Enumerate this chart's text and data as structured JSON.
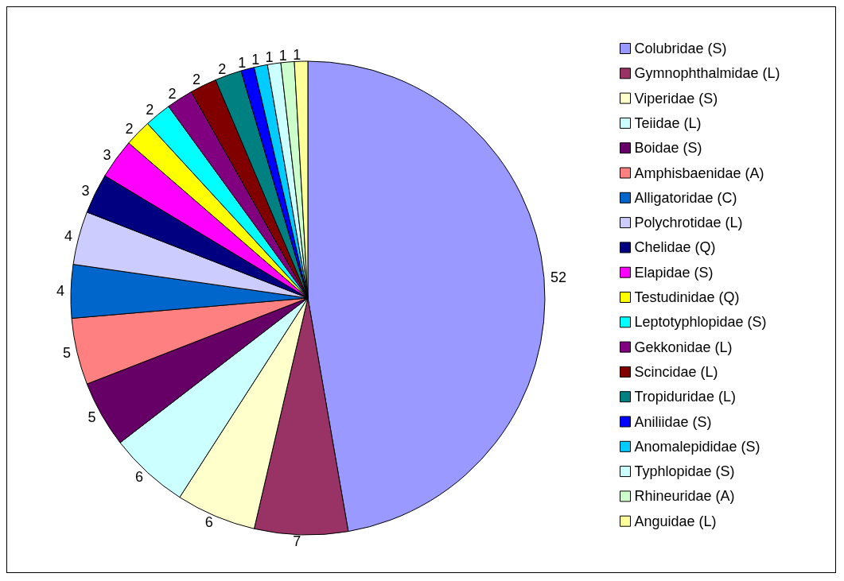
{
  "chart_data": {
    "type": "pie",
    "categories": [
      "Colubridae (S)",
      "Gymnophthalmidae (L)",
      "Viperidae (S)",
      "Teiidae (L)",
      "Boidae (S)",
      "Amphisbaenidae (A)",
      "Alligatoridae (C)",
      "Polychrotidae (L)",
      "Chelidae (Q)",
      "Elapidae (S)",
      "Testudinidae (Q)",
      "Leptotyphlopidae (S)",
      "Gekkonidae (L)",
      "Scincidae (L)",
      "Tropiduridae (L)",
      "Aniliidae (S)",
      "Anomalepididae (S)",
      "Typhlopidae (S)",
      "Rhineuridae (A)",
      "Anguidae (L)"
    ],
    "values": [
      52,
      7,
      6,
      6,
      5,
      5,
      4,
      4,
      3,
      3,
      2,
      2,
      2,
      2,
      2,
      1,
      1,
      1,
      1,
      1
    ],
    "colors": [
      "#9999ff",
      "#993366",
      "#ffffcc",
      "#ccffff",
      "#660066",
      "#ff8080",
      "#0066cc",
      "#ccccff",
      "#000080",
      "#ff00ff",
      "#ffff00",
      "#00ffff",
      "#800080",
      "#800000",
      "#008080",
      "#0000ff",
      "#00ccff",
      "#ccffff",
      "#ccffcc",
      "#ffff99"
    ],
    "data_labels": true,
    "legend": "right"
  }
}
